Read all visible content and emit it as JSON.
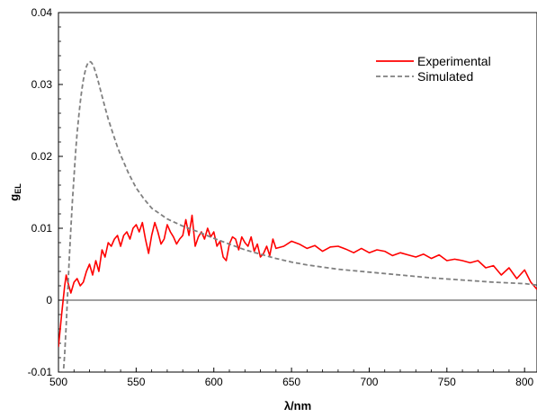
{
  "chart_data": {
    "type": "line",
    "xlabel": "λ/nm",
    "ylabel": "g",
    "ylabel_sub": "EL",
    "xlim": [
      500,
      808
    ],
    "ylim": [
      -0.01,
      0.04
    ],
    "x_ticks": [
      500,
      550,
      600,
      650,
      700,
      750,
      800
    ],
    "y_ticks": [
      -0.01,
      0,
      0.01,
      0.02,
      0.03,
      0.04
    ],
    "y_tick_labels": [
      "-0.01",
      "0",
      "0.01",
      "0.02",
      "0.03",
      "0.04"
    ],
    "zero_line": true,
    "grid": false,
    "legend_position": "top-right",
    "series": [
      {
        "name": "Experimental",
        "color": "#ff0000",
        "style": "solid",
        "x": [
          500,
          502,
          504,
          505,
          506,
          508,
          510,
          512,
          514,
          516,
          518,
          520,
          522,
          524,
          526,
          528,
          530,
          532,
          534,
          536,
          538,
          540,
          542,
          544,
          546,
          548,
          550,
          552,
          554,
          556,
          558,
          560,
          562,
          564,
          566,
          568,
          570,
          572,
          574,
          576,
          578,
          580,
          582,
          584,
          586,
          588,
          590,
          592,
          594,
          596,
          598,
          600,
          602,
          604,
          606,
          608,
          610,
          612,
          614,
          616,
          618,
          620,
          622,
          624,
          626,
          628,
          630,
          632,
          634,
          636,
          638,
          640,
          645,
          650,
          655,
          660,
          665,
          670,
          675,
          680,
          685,
          690,
          695,
          700,
          705,
          710,
          715,
          720,
          725,
          730,
          735,
          740,
          745,
          750,
          755,
          760,
          765,
          770,
          775,
          780,
          785,
          790,
          795,
          800,
          804,
          808
        ],
        "y": [
          -0.0065,
          -0.002,
          0.002,
          0.0035,
          0.0025,
          0.001,
          0.0025,
          0.003,
          0.002,
          0.0025,
          0.004,
          0.005,
          0.0035,
          0.0055,
          0.004,
          0.007,
          0.006,
          0.008,
          0.0075,
          0.0085,
          0.009,
          0.0075,
          0.009,
          0.0095,
          0.0085,
          0.01,
          0.0105,
          0.0095,
          0.0108,
          0.0085,
          0.0065,
          0.009,
          0.0108,
          0.0095,
          0.0078,
          0.0085,
          0.0105,
          0.0095,
          0.0088,
          0.0078,
          0.0085,
          0.009,
          0.0112,
          0.009,
          0.0118,
          0.0075,
          0.0088,
          0.0095,
          0.0085,
          0.01,
          0.0088,
          0.0095,
          0.0075,
          0.0082,
          0.006,
          0.0055,
          0.0078,
          0.0088,
          0.0085,
          0.007,
          0.0088,
          0.008,
          0.0075,
          0.0088,
          0.0068,
          0.0078,
          0.006,
          0.0065,
          0.0075,
          0.0062,
          0.0085,
          0.0072,
          0.0075,
          0.0082,
          0.0078,
          0.0072,
          0.0076,
          0.0068,
          0.0074,
          0.0075,
          0.0071,
          0.0066,
          0.0072,
          0.0066,
          0.007,
          0.0068,
          0.0062,
          0.0066,
          0.0063,
          0.006,
          0.0064,
          0.0058,
          0.0063,
          0.0055,
          0.0057,
          0.0055,
          0.0052,
          0.0055,
          0.0045,
          0.0048,
          0.0035,
          0.0045,
          0.003,
          0.0042,
          0.0025,
          0.0015
        ]
      },
      {
        "name": "Simulated",
        "color": "#808080",
        "style": "dashed",
        "x": [
          503,
          504,
          505,
          506,
          507,
          508,
          509,
          510,
          511,
          512,
          513,
          514,
          515,
          516,
          517,
          518,
          519,
          520,
          521,
          522,
          523,
          524,
          525,
          526,
          528,
          530,
          532,
          535,
          538,
          540,
          545,
          550,
          555,
          560,
          570,
          580,
          590,
          600,
          610,
          620,
          630,
          640,
          650,
          660,
          680,
          700,
          720,
          740,
          760,
          780,
          800,
          808
        ],
        "y": [
          -0.0105,
          -0.0075,
          -0.0035,
          0.0015,
          0.006,
          0.01,
          0.0138,
          0.0172,
          0.0205,
          0.0232,
          0.0255,
          0.0275,
          0.0292,
          0.0306,
          0.0317,
          0.0325,
          0.033,
          0.0332,
          0.0331,
          0.0328,
          0.0323,
          0.0316,
          0.0309,
          0.0301,
          0.0284,
          0.0268,
          0.0252,
          0.0232,
          0.0213,
          0.0202,
          0.0177,
          0.0156,
          0.0141,
          0.0128,
          0.0113,
          0.0103,
          0.0095,
          0.0086,
          0.0078,
          0.007,
          0.0064,
          0.0058,
          0.0053,
          0.0049,
          0.0043,
          0.0039,
          0.0035,
          0.0031,
          0.0028,
          0.0025,
          0.0023,
          0.0021
        ]
      }
    ]
  }
}
